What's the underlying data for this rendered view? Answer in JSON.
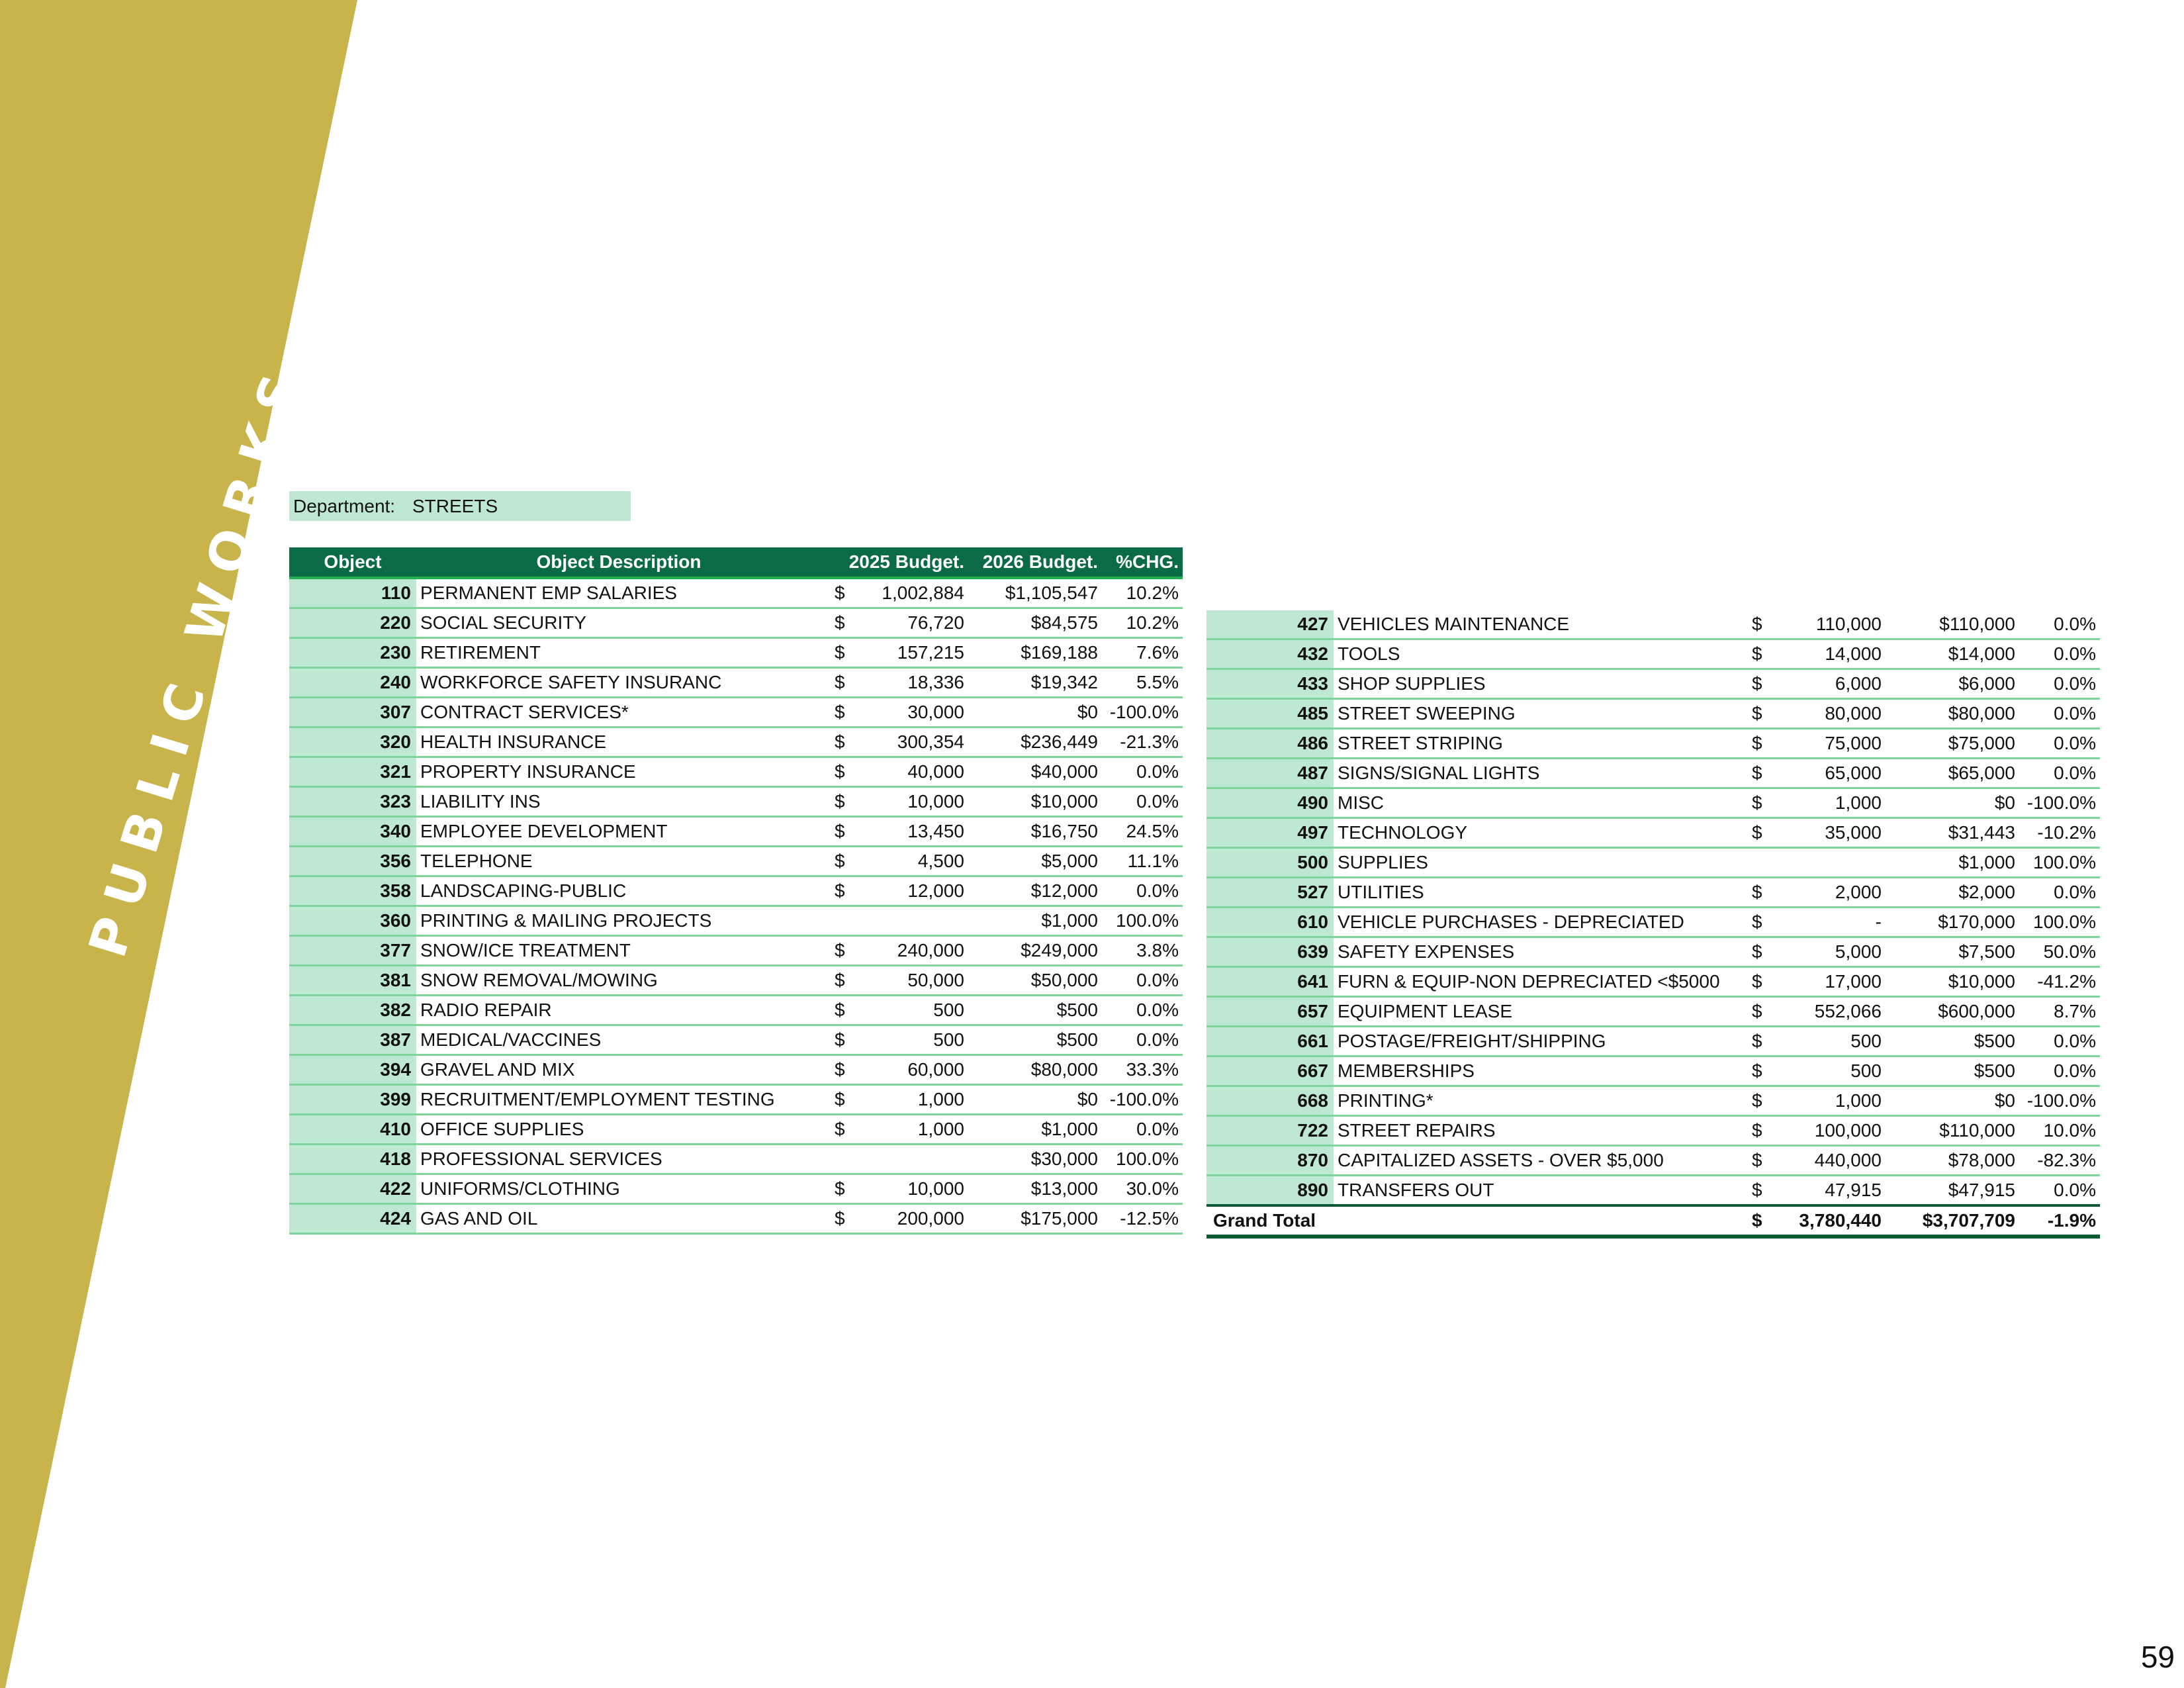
{
  "section": "PUBLIC WORKS",
  "page_number": "59",
  "department": {
    "label": "Department:",
    "value": "STREETS"
  },
  "headers": {
    "object": "Object",
    "description": "Object Description",
    "budget_2025": "2025 Budget.",
    "budget_2026": "2026 Budget.",
    "change": "%CHG."
  },
  "rows_left": [
    {
      "obj": "110",
      "desc": "PERMANENT EMP SALARIES",
      "cur": "$",
      "b25": "1,002,884",
      "b26": "$1,105,547",
      "chg": "10.2%"
    },
    {
      "obj": "220",
      "desc": "SOCIAL SECURITY",
      "cur": "$",
      "b25": "76,720",
      "b26": "$84,575",
      "chg": "10.2%"
    },
    {
      "obj": "230",
      "desc": "RETIREMENT",
      "cur": "$",
      "b25": "157,215",
      "b26": "$169,188",
      "chg": "7.6%"
    },
    {
      "obj": "240",
      "desc": "WORKFORCE SAFETY INSURANC",
      "cur": "$",
      "b25": "18,336",
      "b26": "$19,342",
      "chg": "5.5%"
    },
    {
      "obj": "307",
      "desc": "CONTRACT SERVICES*",
      "cur": "$",
      "b25": "30,000",
      "b26": "$0",
      "chg": "-100.0%"
    },
    {
      "obj": "320",
      "desc": "HEALTH INSURANCE",
      "cur": "$",
      "b25": "300,354",
      "b26": "$236,449",
      "chg": "-21.3%"
    },
    {
      "obj": "321",
      "desc": "PROPERTY INSURANCE",
      "cur": "$",
      "b25": "40,000",
      "b26": "$40,000",
      "chg": "0.0%"
    },
    {
      "obj": "323",
      "desc": "LIABILITY INS",
      "cur": "$",
      "b25": "10,000",
      "b26": "$10,000",
      "chg": "0.0%"
    },
    {
      "obj": "340",
      "desc": "EMPLOYEE DEVELOPMENT",
      "cur": "$",
      "b25": "13,450",
      "b26": "$16,750",
      "chg": "24.5%"
    },
    {
      "obj": "356",
      "desc": "TELEPHONE",
      "cur": "$",
      "b25": "4,500",
      "b26": "$5,000",
      "chg": "11.1%"
    },
    {
      "obj": "358",
      "desc": "LANDSCAPING-PUBLIC",
      "cur": "$",
      "b25": "12,000",
      "b26": "$12,000",
      "chg": "0.0%"
    },
    {
      "obj": "360",
      "desc": "PRINTING & MAILING PROJECTS",
      "cur": "",
      "b25": "",
      "b26": "$1,000",
      "chg": "100.0%"
    },
    {
      "obj": "377",
      "desc": "SNOW/ICE TREATMENT",
      "cur": "$",
      "b25": "240,000",
      "b26": "$249,000",
      "chg": "3.8%"
    },
    {
      "obj": "381",
      "desc": "SNOW REMOVAL/MOWING",
      "cur": "$",
      "b25": "50,000",
      "b26": "$50,000",
      "chg": "0.0%"
    },
    {
      "obj": "382",
      "desc": "RADIO REPAIR",
      "cur": "$",
      "b25": "500",
      "b26": "$500",
      "chg": "0.0%"
    },
    {
      "obj": "387",
      "desc": "MEDICAL/VACCINES",
      "cur": "$",
      "b25": "500",
      "b26": "$500",
      "chg": "0.0%"
    },
    {
      "obj": "394",
      "desc": "GRAVEL AND MIX",
      "cur": "$",
      "b25": "60,000",
      "b26": "$80,000",
      "chg": "33.3%"
    },
    {
      "obj": "399",
      "desc": "RECRUITMENT/EMPLOYMENT TESTING",
      "cur": "$",
      "b25": "1,000",
      "b26": "$0",
      "chg": "-100.0%"
    },
    {
      "obj": "410",
      "desc": "OFFICE SUPPLIES",
      "cur": "$",
      "b25": "1,000",
      "b26": "$1,000",
      "chg": "0.0%"
    },
    {
      "obj": "418",
      "desc": "PROFESSIONAL SERVICES",
      "cur": "",
      "b25": "",
      "b26": "$30,000",
      "chg": "100.0%"
    },
    {
      "obj": "422",
      "desc": "UNIFORMS/CLOTHING",
      "cur": "$",
      "b25": "10,000",
      "b26": "$13,000",
      "chg": "30.0%"
    },
    {
      "obj": "424",
      "desc": "GAS AND OIL",
      "cur": "$",
      "b25": "200,000",
      "b26": "$175,000",
      "chg": "-12.5%"
    }
  ],
  "rows_right": [
    {
      "obj": "427",
      "desc": "VEHICLES MAINTENANCE",
      "cur": "$",
      "b25": "110,000",
      "b26": "$110,000",
      "chg": "0.0%"
    },
    {
      "obj": "432",
      "desc": "TOOLS",
      "cur": "$",
      "b25": "14,000",
      "b26": "$14,000",
      "chg": "0.0%"
    },
    {
      "obj": "433",
      "desc": "SHOP SUPPLIES",
      "cur": "$",
      "b25": "6,000",
      "b26": "$6,000",
      "chg": "0.0%"
    },
    {
      "obj": "485",
      "desc": "STREET SWEEPING",
      "cur": "$",
      "b25": "80,000",
      "b26": "$80,000",
      "chg": "0.0%"
    },
    {
      "obj": "486",
      "desc": "STREET STRIPING",
      "cur": "$",
      "b25": "75,000",
      "b26": "$75,000",
      "chg": "0.0%"
    },
    {
      "obj": "487",
      "desc": "SIGNS/SIGNAL LIGHTS",
      "cur": "$",
      "b25": "65,000",
      "b26": "$65,000",
      "chg": "0.0%"
    },
    {
      "obj": "490",
      "desc": "MISC",
      "cur": "$",
      "b25": "1,000",
      "b26": "$0",
      "chg": "-100.0%"
    },
    {
      "obj": "497",
      "desc": "TECHNOLOGY",
      "cur": "$",
      "b25": "35,000",
      "b26": "$31,443",
      "chg": "-10.2%"
    },
    {
      "obj": "500",
      "desc": "SUPPLIES",
      "cur": "",
      "b25": "",
      "b26": "$1,000",
      "chg": "100.0%"
    },
    {
      "obj": "527",
      "desc": "UTILITIES",
      "cur": "$",
      "b25": "2,000",
      "b26": "$2,000",
      "chg": "0.0%"
    },
    {
      "obj": "610",
      "desc": "VEHICLE PURCHASES - DEPRECIATED",
      "cur": "$",
      "b25": "-",
      "b26": "$170,000",
      "chg": "100.0%"
    },
    {
      "obj": "639",
      "desc": "SAFETY EXPENSES",
      "cur": "$",
      "b25": "5,000",
      "b26": "$7,500",
      "chg": "50.0%"
    },
    {
      "obj": "641",
      "desc": "FURN & EQUIP-NON DEPRECIATED <$5000",
      "cur": "$",
      "b25": "17,000",
      "b26": "$10,000",
      "chg": "-41.2%"
    },
    {
      "obj": "657",
      "desc": "EQUIPMENT LEASE",
      "cur": "$",
      "b25": "552,066",
      "b26": "$600,000",
      "chg": "8.7%"
    },
    {
      "obj": "661",
      "desc": "POSTAGE/FREIGHT/SHIPPING",
      "cur": "$",
      "b25": "500",
      "b26": "$500",
      "chg": "0.0%"
    },
    {
      "obj": "667",
      "desc": "MEMBERSHIPS",
      "cur": "$",
      "b25": "500",
      "b26": "$500",
      "chg": "0.0%"
    },
    {
      "obj": "668",
      "desc": "PRINTING*",
      "cur": "$",
      "b25": "1,000",
      "b26": "$0",
      "chg": "-100.0%"
    },
    {
      "obj": "722",
      "desc": "STREET REPAIRS",
      "cur": "$",
      "b25": "100,000",
      "b26": "$110,000",
      "chg": "10.0%"
    },
    {
      "obj": "870",
      "desc": "CAPITALIZED ASSETS - OVER $5,000",
      "cur": "$",
      "b25": "440,000",
      "b26": "$78,000",
      "chg": "-82.3%"
    },
    {
      "obj": "890",
      "desc": "TRANSFERS OUT",
      "cur": "$",
      "b25": "47,915",
      "b26": "$47,915",
      "chg": "0.0%"
    }
  ],
  "grand_total": {
    "label": "Grand Total",
    "cur": "$",
    "b25": "3,780,440",
    "b26": "$3,707,709",
    "chg": "-1.9%"
  }
}
